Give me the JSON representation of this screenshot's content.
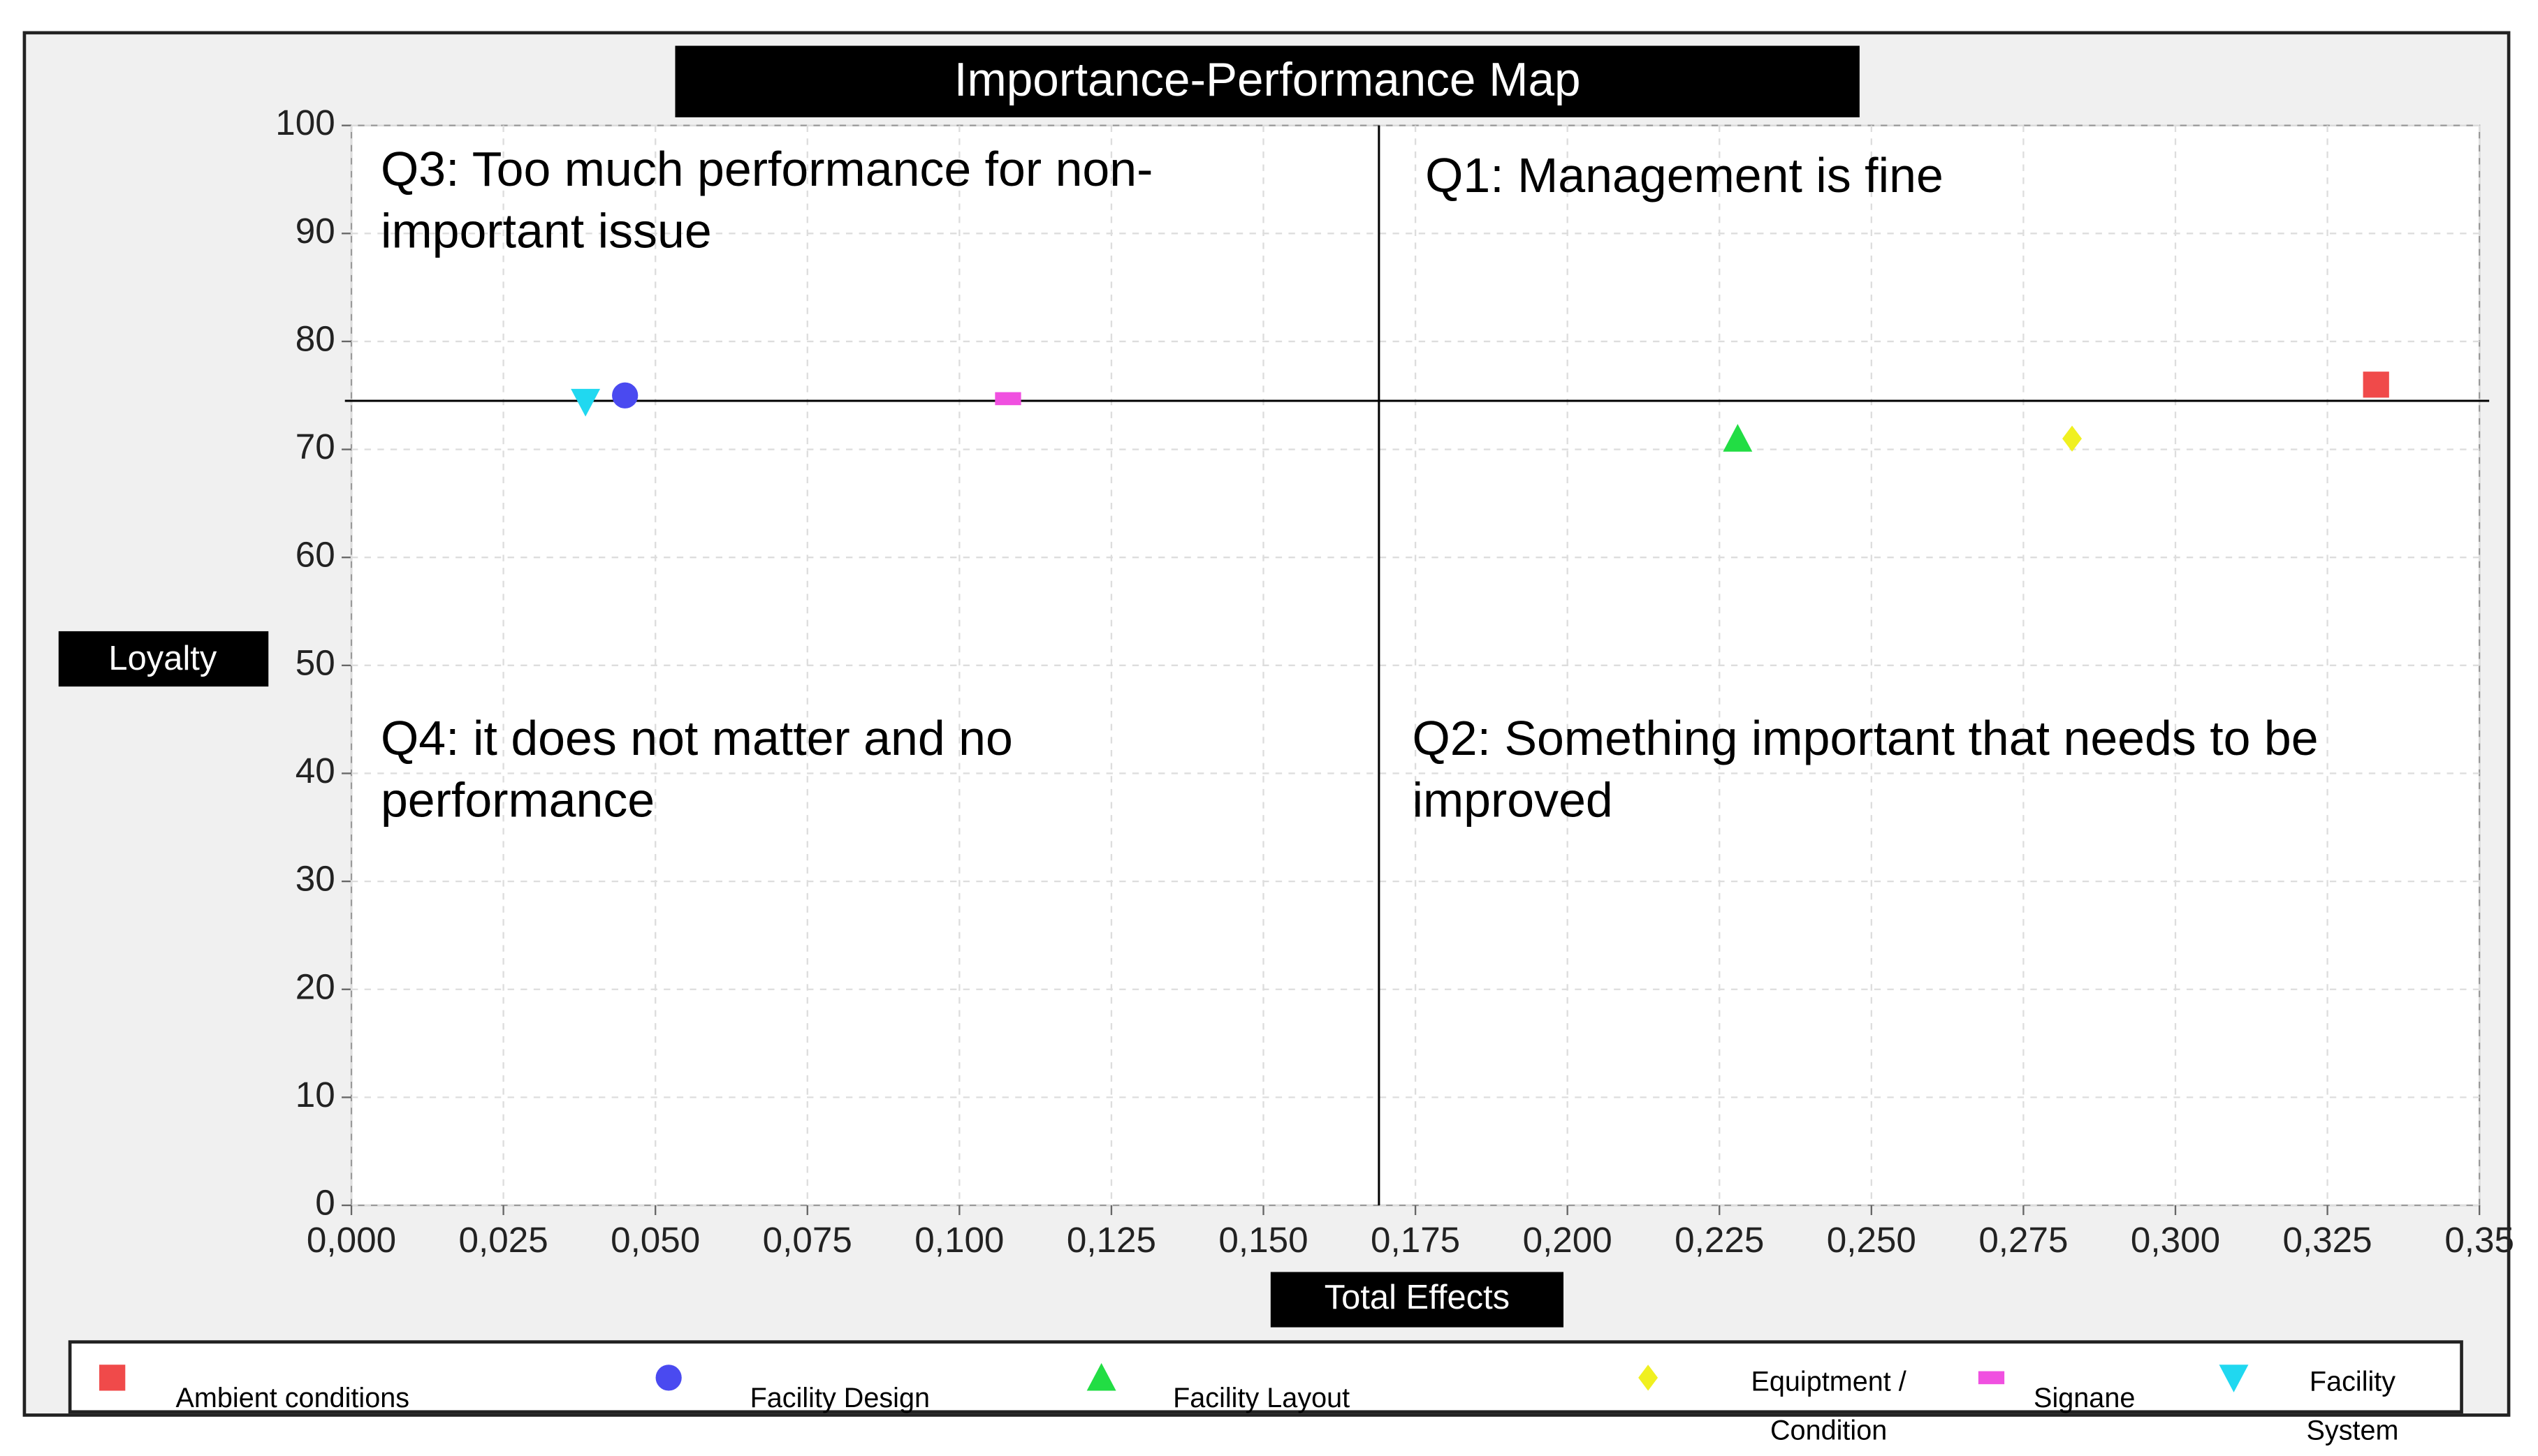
{
  "chart_data": {
    "type": "scatter",
    "title": "Importance-Performance Map",
    "x_label": "Total Effects",
    "y_label": "Loyalty",
    "xlim": [
      0,
      0.35
    ],
    "ylim": [
      0,
      100
    ],
    "xticks": [
      {
        "value": 0,
        "label": "0,000"
      },
      {
        "value": 0.025,
        "label": "0,025"
      },
      {
        "value": 0.05,
        "label": "0,050"
      },
      {
        "value": 0.075,
        "label": "0,075"
      },
      {
        "value": 0.1,
        "label": "0,100"
      },
      {
        "value": 0.125,
        "label": "0,125"
      },
      {
        "value": 0.15,
        "label": "0,150"
      },
      {
        "value": 0.175,
        "label": "0,175"
      },
      {
        "value": 0.2,
        "label": "0,200"
      },
      {
        "value": 0.225,
        "label": "0,225"
      },
      {
        "value": 0.25,
        "label": "0,250"
      },
      {
        "value": 0.275,
        "label": "0,275"
      },
      {
        "value": 0.3,
        "label": "0,300"
      },
      {
        "value": 0.325,
        "label": "0,325"
      },
      {
        "value": 0.35,
        "label": "0,35"
      }
    ],
    "yticks": [
      0,
      10,
      20,
      30,
      40,
      50,
      60,
      70,
      80,
      90,
      100
    ],
    "grid": true,
    "x_line": 0.169,
    "y_line": 74.5,
    "annotations": [
      "Q3: Too much performance for non-important issue",
      "Q1: Management is fine",
      "Q4: it does not matter and no performance",
      "Q2: Something important that needs to be improved"
    ],
    "series": [
      {
        "name": "Ambient conditions",
        "color": "#f04a4a",
        "marker": "square",
        "x": [
          0.333
        ],
        "values": [
          76
        ]
      },
      {
        "name": "Facility Design",
        "color": "#4a4af0",
        "marker": "circle",
        "x": [
          0.045
        ],
        "values": [
          75
        ]
      },
      {
        "name": "Facility Layout",
        "color": "#22dd44",
        "marker": "triangle-up",
        "x": [
          0.228
        ],
        "values": [
          71
        ]
      },
      {
        "name": "Equiptment / Condition",
        "color": "#f0f020",
        "marker": "diamond",
        "x": [
          0.283
        ],
        "values": [
          71
        ]
      },
      {
        "name": "Signane",
        "color": "#f050e0",
        "marker": "dash",
        "x": [
          0.108
        ],
        "values": [
          74.7
        ]
      },
      {
        "name": "Facility System",
        "color": "#20d8f0",
        "marker": "triangle-down",
        "x": [
          0.0385
        ],
        "values": [
          74.4
        ]
      }
    ],
    "legend": "bottom"
  }
}
